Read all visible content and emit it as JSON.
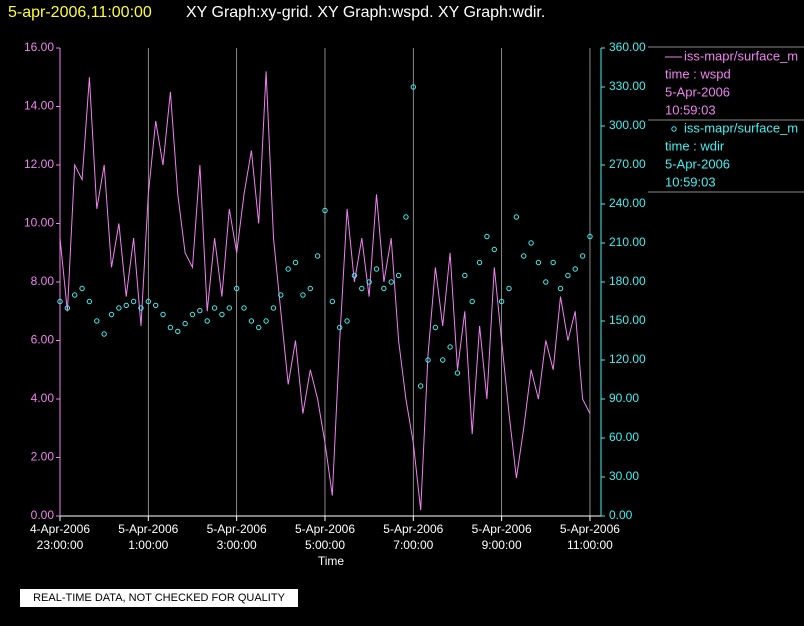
{
  "header": {
    "timestamp": "5-apr-2006,11:00:00",
    "graphs": "XY Graph:xy-grid.  XY Graph:wspd.  XY Graph:wdir."
  },
  "footer": "REAL-TIME DATA, NOT CHECKED FOR QUALITY",
  "chart_data": {
    "type": "line",
    "xlabel": "Time",
    "grid": true,
    "legend": "right",
    "x": [
      "2006-04-04T23:00",
      "2006-04-04T23:10",
      "2006-04-04T23:20",
      "2006-04-04T23:30",
      "2006-04-04T23:40",
      "2006-04-04T23:50",
      "2006-04-05T00:00",
      "2006-04-05T00:10",
      "2006-04-05T00:20",
      "2006-04-05T00:30",
      "2006-04-05T00:40",
      "2006-04-05T00:50",
      "2006-04-05T01:00",
      "2006-04-05T01:10",
      "2006-04-05T01:20",
      "2006-04-05T01:30",
      "2006-04-05T01:40",
      "2006-04-05T01:50",
      "2006-04-05T02:00",
      "2006-04-05T02:10",
      "2006-04-05T02:20",
      "2006-04-05T02:30",
      "2006-04-05T02:40",
      "2006-04-05T02:50",
      "2006-04-05T03:00",
      "2006-04-05T03:10",
      "2006-04-05T03:20",
      "2006-04-05T03:30",
      "2006-04-05T03:40",
      "2006-04-05T03:50",
      "2006-04-05T04:00",
      "2006-04-05T04:10",
      "2006-04-05T04:20",
      "2006-04-05T04:30",
      "2006-04-05T04:40",
      "2006-04-05T04:50",
      "2006-04-05T05:00",
      "2006-04-05T05:10",
      "2006-04-05T05:20",
      "2006-04-05T05:30",
      "2006-04-05T05:40",
      "2006-04-05T05:50",
      "2006-04-05T06:00",
      "2006-04-05T06:10",
      "2006-04-05T06:20",
      "2006-04-05T06:30",
      "2006-04-05T06:40",
      "2006-04-05T06:50",
      "2006-04-05T07:00",
      "2006-04-05T07:10",
      "2006-04-05T07:20",
      "2006-04-05T07:30",
      "2006-04-05T07:40",
      "2006-04-05T07:50",
      "2006-04-05T08:00",
      "2006-04-05T08:10",
      "2006-04-05T08:20",
      "2006-04-05T08:30",
      "2006-04-05T08:40",
      "2006-04-05T08:50",
      "2006-04-05T09:00",
      "2006-04-05T09:10",
      "2006-04-05T09:20",
      "2006-04-05T09:30",
      "2006-04-05T09:40",
      "2006-04-05T09:50",
      "2006-04-05T10:00",
      "2006-04-05T10:10",
      "2006-04-05T10:20",
      "2006-04-05T10:30",
      "2006-04-05T10:40",
      "2006-04-05T10:50",
      "2006-04-05T11:00"
    ],
    "xlim": [
      "2006-04-04T23:00",
      "2006-04-05T11:15"
    ],
    "xticks": [
      {
        "value": "2006-04-04T23:00",
        "label": [
          "4-Apr-2006",
          "23:00:00"
        ]
      },
      {
        "value": "2006-04-05T01:00",
        "label": [
          "5-Apr-2006",
          "1:00:00"
        ]
      },
      {
        "value": "2006-04-05T03:00",
        "label": [
          "5-Apr-2006",
          "3:00:00"
        ]
      },
      {
        "value": "2006-04-05T05:00",
        "label": [
          "5-Apr-2006",
          "5:00:00"
        ]
      },
      {
        "value": "2006-04-05T07:00",
        "label": [
          "5-Apr-2006",
          "7:00:00"
        ]
      },
      {
        "value": "2006-04-05T09:00",
        "label": [
          "5-Apr-2006",
          "9:00:00"
        ]
      },
      {
        "value": "2006-04-05T11:00",
        "label": [
          "5-Apr-2006",
          "11:00:00"
        ]
      }
    ],
    "ylim": [
      0,
      16
    ],
    "yticks": [
      {
        "value": 0,
        "label": "0.00"
      },
      {
        "value": 2,
        "label": "2.00"
      },
      {
        "value": 4,
        "label": "4.00"
      },
      {
        "value": 6,
        "label": "6.00"
      },
      {
        "value": 8,
        "label": "8.00"
      },
      {
        "value": 10,
        "label": "10.00"
      },
      {
        "value": 12,
        "label": "12.00"
      },
      {
        "value": 14,
        "label": "14.00"
      },
      {
        "value": 16,
        "label": "16.00"
      }
    ],
    "y2lim": [
      0,
      360
    ],
    "y2ticks": [
      {
        "value": 0,
        "label": "0.00"
      },
      {
        "value": 30,
        "label": "30.00"
      },
      {
        "value": 60,
        "label": "60.00"
      },
      {
        "value": 90,
        "label": "90.00"
      },
      {
        "value": 120,
        "label": "120.00"
      },
      {
        "value": 150,
        "label": "150.00"
      },
      {
        "value": 180,
        "label": "180.00"
      },
      {
        "value": 210,
        "label": "210.00"
      },
      {
        "value": 240,
        "label": "240.00"
      },
      {
        "value": 270,
        "label": "270.00"
      },
      {
        "value": 300,
        "label": "300.00"
      },
      {
        "value": 330,
        "label": "330.00"
      },
      {
        "value": 360,
        "label": "360.00"
      }
    ],
    "series": [
      {
        "name": "iss-mapr/surface_m",
        "type": "line",
        "color": "#ee82ee",
        "info": [
          "time : wspd",
          "5-Apr-2006",
          "10:59:03"
        ],
        "values": [
          9.5,
          7.0,
          12.0,
          11.5,
          15.0,
          10.5,
          12.0,
          8.5,
          10.0,
          7.5,
          9.5,
          6.5,
          11.0,
          13.5,
          12.0,
          14.5,
          11.0,
          9.0,
          8.5,
          12.0,
          7.0,
          9.5,
          7.5,
          10.5,
          9.0,
          11.0,
          12.5,
          10.0,
          15.2,
          9.5,
          7.0,
          4.5,
          6.0,
          3.5,
          5.0,
          4.0,
          2.5,
          0.7,
          6.0,
          10.5,
          8.0,
          9.5,
          7.5,
          11.0,
          8.0,
          9.5,
          6.0,
          4.0,
          2.5,
          0.2,
          5.5,
          8.5,
          6.5,
          9.0,
          5.0,
          7.0,
          2.8,
          6.5,
          4.0,
          8.5,
          6.0,
          3.5,
          1.3,
          3.0,
          5.0,
          4.0,
          6.0,
          5.0,
          7.5,
          6.0,
          7.0,
          4.0,
          3.5
        ]
      },
      {
        "name": "iss-mapr/surface_m",
        "type": "scatter",
        "axis": "y2",
        "color": "#40f0f0",
        "info": [
          "time : wdir",
          "5-Apr-2006",
          "10:59:03"
        ],
        "values": [
          165,
          160,
          170,
          175,
          165,
          150,
          140,
          155,
          160,
          162,
          165,
          160,
          165,
          162,
          155,
          145,
          142,
          148,
          155,
          158,
          150,
          160,
          155,
          160,
          175,
          160,
          150,
          145,
          150,
          160,
          170,
          190,
          195,
          170,
          175,
          200,
          235,
          165,
          145,
          150,
          185,
          175,
          180,
          190,
          175,
          180,
          185,
          230,
          330,
          100,
          120,
          145,
          120,
          130,
          110,
          185,
          165,
          195,
          215,
          205,
          165,
          175,
          230,
          200,
          210,
          195,
          180,
          195,
          175,
          185,
          190,
          200,
          215
        ]
      }
    ]
  }
}
